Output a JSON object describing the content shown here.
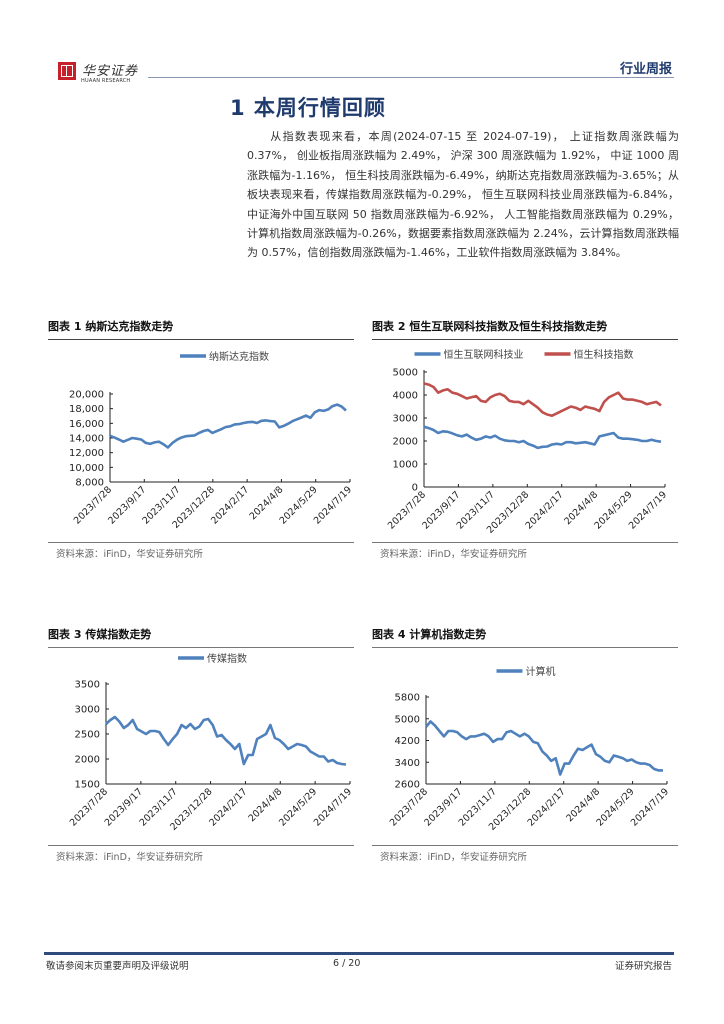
{
  "header": {
    "logo_cn": "华安证券",
    "logo_en": "HUAAN RESEARCH",
    "report_type": "行业周报"
  },
  "section": {
    "title": "1 本周行情回顾",
    "paragraph": "从指数表现来看，本周(2024-07-15 至 2024-07-19)， 上证指数周涨跌幅为 0.37%， 创业板指周涨跌幅为 2.49%， 沪深 300 周涨跌幅为 1.92%， 中证 1000 周涨跌幅为-1.16%， 恒生科技周涨跌幅为-6.49%，纳斯达克指数周涨跌幅为-3.65%；从板块表现来看，传媒指数周涨跌幅为-0.29%， 恒生互联网科技业周涨跌幅为-6.84%， 中证海外中国互联网 50 指数周涨跌幅为-6.92%， 人工智能指数周涨跌幅为 0.29%， 计算机指数周涨跌幅为-0.26%，数据要素指数周涨跌幅为 2.24%，云计算指数周涨跌幅为 0.57%，信创指数周涨跌幅为-1.46%，工业软件指数周涨跌幅为 3.84%。"
  },
  "figures": [
    {
      "title": "图表 1 纳斯达克指数走势",
      "source": "资料来源：iFinD，华安证券研究所"
    },
    {
      "title": "图表 2 恒生互联网科技指数及恒生科技指数走势",
      "source": "资料来源：iFinD，华安证券研究所"
    },
    {
      "title": "图表 3 传媒指数走势",
      "source": "资料来源：iFinD，华安证券研究所"
    },
    {
      "title": "图表 4 计算机指数走势",
      "source": "资料来源：iFinD，华安证券研究所"
    }
  ],
  "chart_data": [
    {
      "type": "line",
      "title": "纳斯达克指数",
      "categories": [
        "2023/7/28",
        "2023/9/17",
        "2023/11/7",
        "2023/12/28",
        "2024/2/17",
        "2024/4/8",
        "2024/5/29",
        "2024/7/19"
      ],
      "ylim": [
        8000,
        20000
      ],
      "yticks": [
        8000,
        10000,
        12000,
        14000,
        16000,
        18000,
        20000
      ],
      "ytick_labels": [
        "8,000",
        "10,000",
        "12,000",
        "14,000",
        "16,000",
        "18,000",
        "20,000"
      ],
      "legend_position": "top",
      "grid": false,
      "series": [
        {
          "name": "纳斯达克指数",
          "color": "#4f81bd",
          "values": [
            14300,
            14050,
            13800,
            13500,
            13750,
            14000,
            13900,
            13800,
            13350,
            13200,
            13400,
            13500,
            13150,
            12700,
            13300,
            13750,
            14050,
            14250,
            14300,
            14350,
            14700,
            14950,
            15100,
            14700,
            14950,
            15200,
            15500,
            15600,
            15850,
            15900,
            16050,
            16150,
            16200,
            16050,
            16350,
            16400,
            16300,
            16250,
            15450,
            15650,
            15950,
            16300,
            16550,
            16800,
            17050,
            16750,
            17500,
            17800,
            17700,
            17900,
            18350,
            18550,
            18300,
            17750
          ]
        }
      ]
    },
    {
      "type": "line",
      "title": "恒生互联网科技指数及恒生科技指数",
      "categories": [
        "2023/7/28",
        "2023/9/17",
        "2023/11/7",
        "2023/12/28",
        "2024/2/17",
        "2024/4/8",
        "2024/5/29",
        "2024/7/19"
      ],
      "ylim": [
        0,
        5000
      ],
      "yticks": [
        0,
        1000,
        2000,
        3000,
        4000,
        5000
      ],
      "ytick_labels": [
        "0",
        "1000",
        "2000",
        "3000",
        "4000",
        "5000"
      ],
      "legend_position": "top",
      "grid": false,
      "series": [
        {
          "name": "恒生互联网科技业",
          "color": "#4f81bd",
          "values": [
            2620,
            2560,
            2480,
            2350,
            2420,
            2400,
            2330,
            2250,
            2200,
            2280,
            2150,
            2050,
            2100,
            2200,
            2150,
            2230,
            2100,
            2030,
            2000,
            2000,
            1950,
            2000,
            1870,
            1800,
            1700,
            1750,
            1760,
            1850,
            1880,
            1850,
            1950,
            1950,
            1900,
            1920,
            1950,
            1900,
            1850,
            2200,
            2250,
            2300,
            2350,
            2150,
            2100,
            2100,
            2080,
            2050,
            2000,
            2000,
            2050,
            2000,
            1970
          ]
        },
        {
          "name": "恒生科技指数",
          "color": "#c0504d",
          "values": [
            4500,
            4450,
            4350,
            4100,
            4200,
            4250,
            4100,
            4050,
            3950,
            3850,
            3900,
            3950,
            3750,
            3700,
            3900,
            4000,
            4050,
            3950,
            3750,
            3700,
            3700,
            3600,
            3750,
            3600,
            3450,
            3250,
            3150,
            3100,
            3200,
            3300,
            3400,
            3500,
            3450,
            3350,
            3500,
            3450,
            3400,
            3300,
            3700,
            3900,
            4000,
            4100,
            3850,
            3800,
            3800,
            3750,
            3700,
            3600,
            3650,
            3700,
            3550
          ]
        }
      ]
    },
    {
      "type": "line",
      "title": "传媒指数",
      "categories": [
        "2023/7/28",
        "2023/9/17",
        "2023/11/7",
        "2023/12/28",
        "2024/2/17",
        "2024/4/8",
        "2024/5/29",
        "2024/7/19"
      ],
      "ylim": [
        1500,
        3500
      ],
      "yticks": [
        1500,
        2000,
        2500,
        3000,
        3500
      ],
      "ytick_labels": [
        "1500",
        "2000",
        "2500",
        "3000",
        "3500"
      ],
      "legend_position": "top",
      "grid": false,
      "series": [
        {
          "name": "传媒指数",
          "color": "#4f81bd",
          "values": [
            2700,
            2780,
            2840,
            2750,
            2620,
            2680,
            2780,
            2600,
            2550,
            2500,
            2560,
            2560,
            2540,
            2400,
            2280,
            2400,
            2500,
            2680,
            2620,
            2700,
            2600,
            2650,
            2780,
            2800,
            2680,
            2450,
            2480,
            2380,
            2300,
            2200,
            2300,
            1900,
            2080,
            2080,
            2400,
            2450,
            2500,
            2680,
            2420,
            2380,
            2300,
            2200,
            2250,
            2300,
            2280,
            2250,
            2150,
            2100,
            2050,
            2050,
            1950,
            1980,
            1920,
            1900,
            1890
          ]
        }
      ]
    },
    {
      "type": "line",
      "title": "计算机指数",
      "categories": [
        "2023/7/28",
        "2023/9/17",
        "2023/11/7",
        "2023/12/28",
        "2024/2/17",
        "2024/4/8",
        "2024/5/29",
        "2024/7/19"
      ],
      "ylim": [
        2600,
        5800
      ],
      "yticks": [
        2600,
        3400,
        4200,
        5000,
        5800
      ],
      "ytick_labels": [
        "2600",
        "3400",
        "4200",
        "5000",
        "5800"
      ],
      "legend_position": "top",
      "grid": false,
      "series": [
        {
          "name": "计算机",
          "color": "#4f81bd",
          "values": [
            4700,
            4900,
            4750,
            4550,
            4350,
            4550,
            4550,
            4500,
            4350,
            4250,
            4350,
            4350,
            4400,
            4450,
            4350,
            4150,
            4250,
            4250,
            4500,
            4550,
            4450,
            4350,
            4450,
            4350,
            4150,
            4100,
            3800,
            3650,
            3450,
            3550,
            2950,
            3350,
            3350,
            3650,
            3900,
            3850,
            3950,
            4050,
            3700,
            3600,
            3450,
            3400,
            3650,
            3600,
            3550,
            3450,
            3500,
            3400,
            3350,
            3350,
            3300,
            3150,
            3100,
            3100
          ]
        }
      ]
    }
  ],
  "footer": {
    "disclaimer": "敬请参阅末页重要声明及评级说明",
    "page": "6 / 20",
    "doc_type": "证券研究报告"
  }
}
